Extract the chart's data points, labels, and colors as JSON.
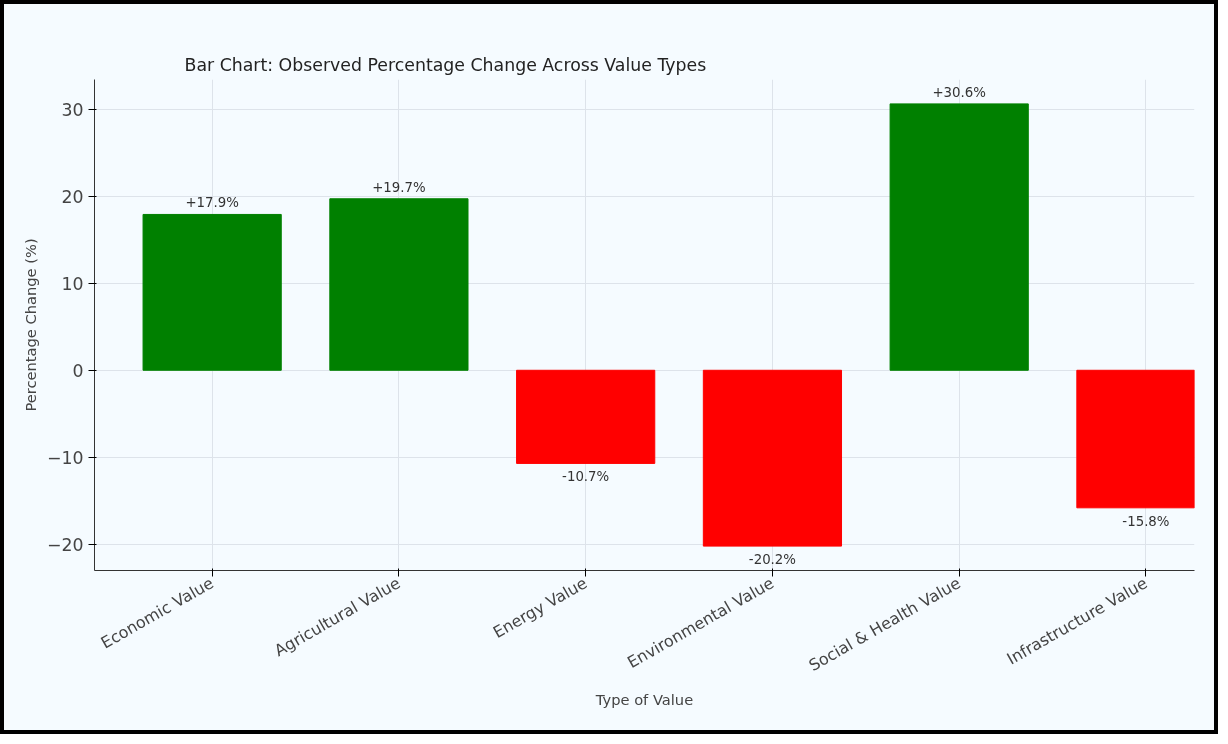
{
  "chart_data": {
    "type": "bar",
    "title": "Bar Chart: Observed Percentage Change Across Value Types",
    "xlabel": "Type of Value",
    "ylabel": "Percentage Change (%)",
    "categories": [
      "Economic Value",
      "Agricultural Value",
      "Energy Value",
      "Environmental Value",
      "Social & Health Value",
      "Infrastructure Value"
    ],
    "values": [
      17.9,
      19.7,
      -10.7,
      -20.2,
      30.6,
      -15.8
    ],
    "colors": [
      "#008000",
      "#008000",
      "#ff0000",
      "#ff0000",
      "#008000",
      "#ff0000"
    ],
    "value_labels": [
      "+17.9%",
      "+19.7%",
      "-10.7%",
      "-20.2%",
      "+30.6%",
      "-15.8%"
    ],
    "ylim": [
      -23,
      33.4
    ],
    "yticks": [
      -20,
      -10,
      0,
      10,
      20,
      30
    ],
    "grid": true
  }
}
